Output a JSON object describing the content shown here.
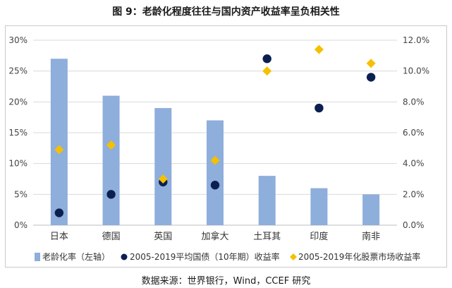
{
  "figure_title": "图 9：老龄化程度往往与国内资产收益率呈负相关性",
  "source_note": "数据来源：世界银行，Wind，CCEF 研究",
  "colors": {
    "bar": "#8eaedb",
    "dot": "#0b2050",
    "diamond": "#f5c000",
    "grid": "#d9d9d9"
  },
  "chart_data": {
    "type": "bar",
    "categories": [
      "日本",
      "德国",
      "英国",
      "加拿大",
      "土耳其",
      "印度",
      "南非"
    ],
    "left_axis": {
      "ticks": [
        "0%",
        "5%",
        "10%",
        "15%",
        "20%",
        "25%",
        "30%"
      ],
      "ylim": [
        0,
        30
      ]
    },
    "right_axis": {
      "ticks": [
        "0.0%",
        "2.0%",
        "4.0%",
        "6.0%",
        "8.0%",
        "10.0%",
        "12.0%"
      ],
      "ylim": [
        0,
        12
      ]
    },
    "series": [
      {
        "name": "老龄化率（左轴）",
        "kind": "bar",
        "axis": "left",
        "values": [
          27,
          21,
          19,
          17,
          8,
          6,
          5
        ]
      },
      {
        "name": "2005-2019平均国债（10年期）收益率",
        "kind": "dot",
        "axis": "right",
        "values": [
          0.8,
          2.0,
          2.8,
          2.6,
          10.8,
          7.6,
          9.6
        ]
      },
      {
        "name": "2005-2019年化股票市场收益率",
        "kind": "diamond",
        "axis": "right",
        "values": [
          4.9,
          5.2,
          3.0,
          4.2,
          10.0,
          11.4,
          10.5
        ]
      }
    ],
    "grid": true,
    "legend_position": "bottom"
  }
}
